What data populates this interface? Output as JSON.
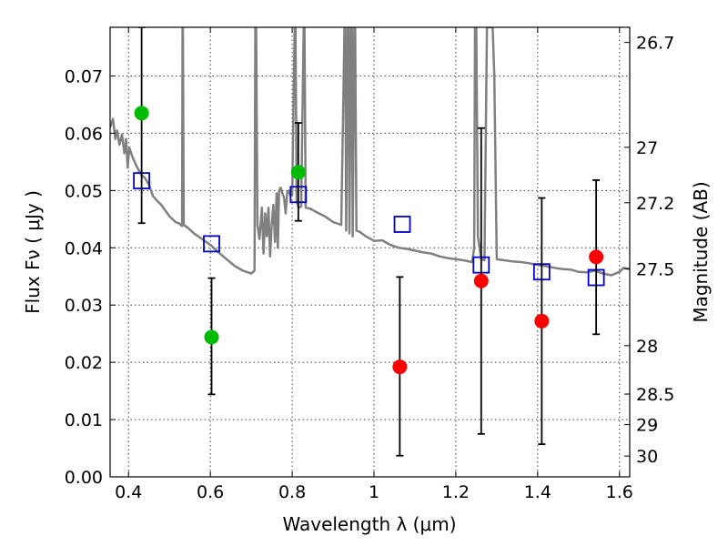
{
  "chart_data": {
    "type": "scatter",
    "title": "",
    "xlabel": "Wavelength  λ (μm)",
    "ylabel": "Flux  Fν  ( μJy )",
    "ylabel_right": "Magnitude (AB)",
    "xlim": [
      0.355,
      1.625
    ],
    "ylim": [
      0.0,
      0.0785
    ],
    "grid": true,
    "legend": "none",
    "x_ticks": [
      {
        "value": 0.4,
        "label": "0.4"
      },
      {
        "value": 0.6,
        "label": "0.6"
      },
      {
        "value": 0.8,
        "label": "0.8"
      },
      {
        "value": 1.0,
        "label": "1"
      },
      {
        "value": 1.2,
        "label": "1.2"
      },
      {
        "value": 1.4,
        "label": "1.4"
      },
      {
        "value": 1.6,
        "label": "1.6"
      }
    ],
    "y_ticks": [
      {
        "value": 0.0,
        "label": "0.00"
      },
      {
        "value": 0.01,
        "label": "0.01"
      },
      {
        "value": 0.02,
        "label": "0.02"
      },
      {
        "value": 0.03,
        "label": "0.03"
      },
      {
        "value": 0.04,
        "label": "0.04"
      },
      {
        "value": 0.05,
        "label": "0.05"
      },
      {
        "value": 0.06,
        "label": "0.06"
      },
      {
        "value": 0.07,
        "label": "0.07"
      }
    ],
    "right_ticks": [
      {
        "mag": 26.7,
        "label": "26.7"
      },
      {
        "mag": 27.0,
        "label": "27"
      },
      {
        "mag": 27.2,
        "label": "27.2"
      },
      {
        "mag": 27.5,
        "label": "27.5"
      },
      {
        "mag": 28.0,
        "label": "28"
      },
      {
        "mag": 28.5,
        "label": "28.5"
      },
      {
        "mag": 29.0,
        "label": "29"
      },
      {
        "mag": 30.0,
        "label": "30"
      }
    ],
    "series": [
      {
        "color": "#808080",
        "marker": "line",
        "points": [
          [
            0.355,
            0.061
          ],
          [
            0.362,
            0.0625
          ],
          [
            0.368,
            0.059
          ],
          [
            0.372,
            0.0605
          ],
          [
            0.378,
            0.058
          ],
          [
            0.384,
            0.0598
          ],
          [
            0.39,
            0.0565
          ],
          [
            0.394,
            0.059
          ],
          [
            0.398,
            0.054
          ],
          [
            0.402,
            0.0575
          ],
          [
            0.41,
            0.0558
          ],
          [
            0.418,
            0.0545
          ],
          [
            0.425,
            0.0535
          ],
          [
            0.432,
            0.0527
          ],
          [
            0.44,
            0.0522
          ],
          [
            0.45,
            0.051
          ],
          [
            0.46,
            0.049
          ],
          [
            0.47,
            0.0482
          ],
          [
            0.48,
            0.0475
          ],
          [
            0.49,
            0.0465
          ],
          [
            0.5,
            0.0455
          ],
          [
            0.515,
            0.0445
          ],
          [
            0.525,
            0.0442
          ],
          [
            0.531,
            0.0438
          ],
          [
            0.532,
            0.0785
          ],
          [
            0.533,
            0.0785
          ],
          [
            0.535,
            0.044
          ],
          [
            0.545,
            0.0435
          ],
          [
            0.56,
            0.0425
          ],
          [
            0.58,
            0.0415
          ],
          [
            0.6,
            0.0405
          ],
          [
            0.62,
            0.0392
          ],
          [
            0.64,
            0.038
          ],
          [
            0.66,
            0.0368
          ],
          [
            0.68,
            0.036
          ],
          [
            0.7,
            0.0355
          ],
          [
            0.708,
            0.036
          ],
          [
            0.71,
            0.0785
          ],
          [
            0.712,
            0.0785
          ],
          [
            0.715,
            0.044
          ],
          [
            0.72,
            0.0415
          ],
          [
            0.726,
            0.047
          ],
          [
            0.73,
            0.039
          ],
          [
            0.734,
            0.046
          ],
          [
            0.738,
            0.042
          ],
          [
            0.742,
            0.047
          ],
          [
            0.746,
            0.0385
          ],
          [
            0.75,
            0.044
          ],
          [
            0.754,
            0.0475
          ],
          [
            0.758,
            0.041
          ],
          [
            0.762,
            0.0495
          ],
          [
            0.765,
            0.04
          ],
          [
            0.768,
            0.05
          ],
          [
            0.772,
            0.0505
          ],
          [
            0.776,
            0.0495
          ],
          [
            0.78,
            0.0488
          ],
          [
            0.784,
            0.046
          ],
          [
            0.788,
            0.0498
          ],
          [
            0.792,
            0.05
          ],
          [
            0.796,
            0.049
          ],
          [
            0.8,
            0.0492
          ],
          [
            0.806,
            0.0785
          ],
          [
            0.808,
            0.0785
          ],
          [
            0.811,
            0.048
          ],
          [
            0.816,
            0.047
          ],
          [
            0.822,
            0.0472
          ],
          [
            0.828,
            0.0785
          ],
          [
            0.83,
            0.0785
          ],
          [
            0.833,
            0.047
          ],
          [
            0.845,
            0.0468
          ],
          [
            0.86,
            0.0462
          ],
          [
            0.88,
            0.0455
          ],
          [
            0.9,
            0.0445
          ],
          [
            0.92,
            0.044
          ],
          [
            0.928,
            0.0785
          ],
          [
            0.93,
            0.0785
          ],
          [
            0.932,
            0.043
          ],
          [
            0.936,
            0.0785
          ],
          [
            0.938,
            0.0785
          ],
          [
            0.94,
            0.0425
          ],
          [
            0.944,
            0.0785
          ],
          [
            0.946,
            0.0785
          ],
          [
            0.948,
            0.042
          ],
          [
            0.952,
            0.0785
          ],
          [
            0.954,
            0.0785
          ],
          [
            0.957,
            0.043
          ],
          [
            0.965,
            0.0428
          ],
          [
            0.98,
            0.042
          ],
          [
            1.0,
            0.0412
          ],
          [
            1.02,
            0.0413
          ],
          [
            1.04,
            0.0405
          ],
          [
            1.06,
            0.04
          ],
          [
            1.08,
            0.0398
          ],
          [
            1.1,
            0.0395
          ],
          [
            1.12,
            0.0392
          ],
          [
            1.14,
            0.039
          ],
          [
            1.16,
            0.0385
          ],
          [
            1.18,
            0.0382
          ],
          [
            1.2,
            0.038
          ],
          [
            1.22,
            0.0378
          ],
          [
            1.24,
            0.0375
          ],
          [
            1.245,
            0.04
          ],
          [
            1.247,
            0.0785
          ],
          [
            1.25,
            0.0785
          ],
          [
            1.254,
            0.042
          ],
          [
            1.262,
            0.038
          ],
          [
            1.27,
            0.0378
          ],
          [
            1.276,
            0.0785
          ],
          [
            1.28,
            0.0785
          ],
          [
            1.284,
            0.0785
          ],
          [
            1.29,
            0.0785
          ],
          [
            1.294,
            0.07
          ],
          [
            1.3,
            0.038
          ],
          [
            1.32,
            0.0378
          ],
          [
            1.34,
            0.0376
          ],
          [
            1.36,
            0.0375
          ],
          [
            1.38,
            0.0373
          ],
          [
            1.4,
            0.037
          ],
          [
            1.42,
            0.0368
          ],
          [
            1.44,
            0.0365
          ],
          [
            1.46,
            0.0363
          ],
          [
            1.48,
            0.0362
          ],
          [
            1.5,
            0.0358
          ],
          [
            1.52,
            0.0357
          ],
          [
            1.54,
            0.036
          ],
          [
            1.56,
            0.0355
          ],
          [
            1.58,
            0.0352
          ],
          [
            1.6,
            0.0358
          ],
          [
            1.61,
            0.0365
          ],
          [
            1.625,
            0.0363
          ]
        ]
      },
      {
        "color": "#0000cc",
        "marker": "open-square",
        "points": [
          [
            0.432,
            0.0517
          ],
          [
            0.603,
            0.0407
          ],
          [
            0.815,
            0.0493
          ],
          [
            1.069,
            0.0441
          ],
          [
            1.262,
            0.037
          ],
          [
            1.41,
            0.0358
          ],
          [
            1.543,
            0.0348
          ]
        ]
      },
      {
        "color": "#00bb00",
        "marker": "filled-circle",
        "points": [
          {
            "x": 0.432,
            "y": 0.0635,
            "yerr_low": 0.0443,
            "yerr_high": 0.0785
          },
          {
            "x": 0.603,
            "y": 0.0244,
            "yerr_low": 0.0144,
            "yerr_high": 0.0347
          },
          {
            "x": 0.815,
            "y": 0.0532,
            "yerr_low": 0.0447,
            "yerr_high": 0.0618
          }
        ]
      },
      {
        "color": "#ff0000",
        "marker": "filled-circle",
        "points": [
          {
            "x": 1.063,
            "y": 0.0192,
            "yerr_low": 0.0037,
            "yerr_high": 0.0349
          },
          {
            "x": 1.262,
            "y": 0.0342,
            "yerr_low": 0.0075,
            "yerr_high": 0.0609
          },
          {
            "x": 1.41,
            "y": 0.0272,
            "yerr_low": 0.0057,
            "yerr_high": 0.0487
          },
          {
            "x": 1.543,
            "y": 0.0384,
            "yerr_low": 0.0249,
            "yerr_high": 0.0518
          }
        ]
      }
    ]
  }
}
